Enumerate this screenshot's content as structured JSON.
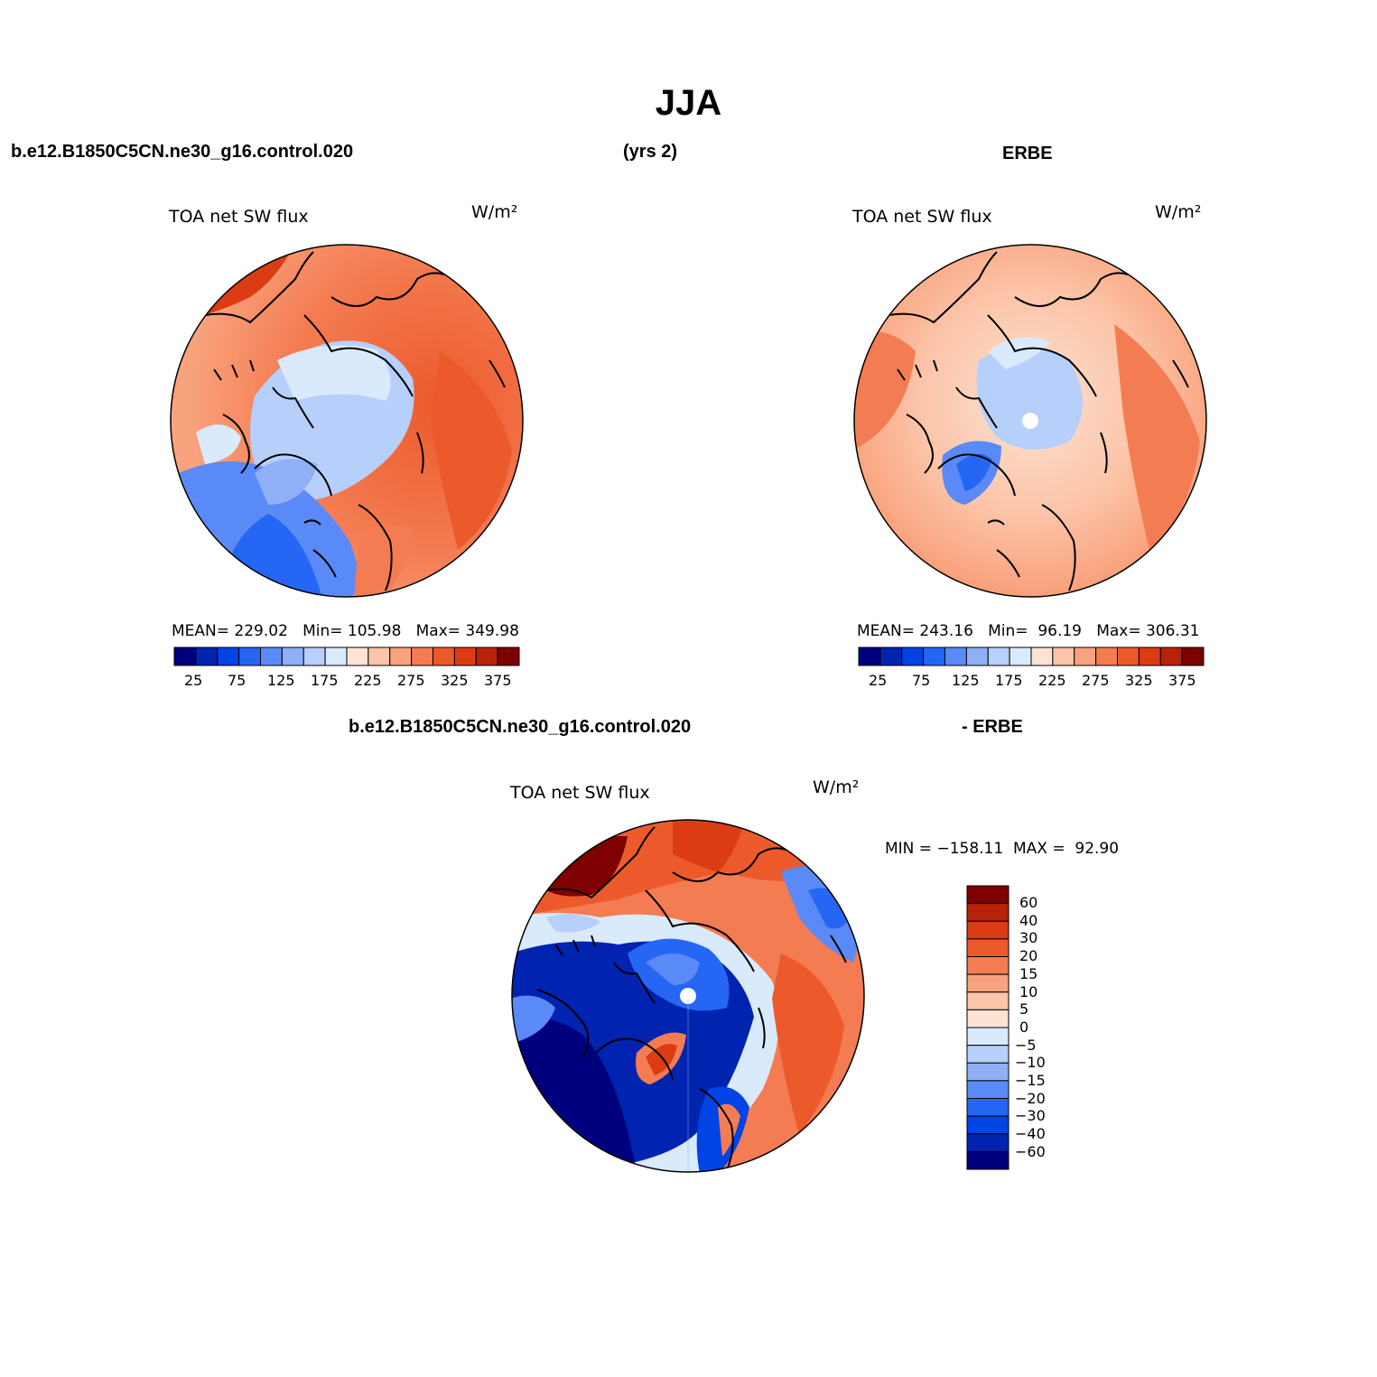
{
  "page": {
    "title": "JJA",
    "case_name": "b.e12.B1850C5CN.ne30_g16.control.020",
    "years": "(yrs 2)",
    "obs_name": "ERBE",
    "diff_case_name": "b.e12.B1850C5CN.ne30_g16.control.020",
    "diff_obs_name": "- ERBE"
  },
  "panels": {
    "model": {
      "variable": "TOA net SW flux",
      "units": "W/m²",
      "stats": "MEAN= 229.02   Min= 105.98   Max= 349.98"
    },
    "obs": {
      "variable": "TOA net SW flux",
      "units": "W/m²",
      "stats": "MEAN= 243.16   Min=  96.19   Max= 306.31"
    },
    "diff": {
      "variable": "TOA net SW flux",
      "units": "W/m²",
      "stats": "MIN = −158.11  MAX =  92.90"
    }
  },
  "colorbars": {
    "absolute": {
      "colors": [
        "#00007f",
        "#0023b0",
        "#0044e6",
        "#2566f5",
        "#5a8af7",
        "#8fb0f7",
        "#b6cffb",
        "#d9eafc",
        "#fde3d3",
        "#fcc4a8",
        "#f9a37e",
        "#f47c52",
        "#ec5a2c",
        "#dc3c13",
        "#b72308",
        "#7f0000"
      ],
      "labels": [
        "25",
        "75",
        "125",
        "175",
        "225",
        "275",
        "325",
        "375"
      ]
    },
    "difference": {
      "colors": [
        "#7f0000",
        "#b72308",
        "#dc3c13",
        "#ec5a2c",
        "#f47c52",
        "#f9a37e",
        "#fcc4a8",
        "#fde3d3",
        "#d9eafc",
        "#b6cffb",
        "#8fb0f7",
        "#5a8af7",
        "#2566f5",
        "#0044e6",
        "#0023b0",
        "#00007f"
      ],
      "labels": [
        "60",
        "40",
        "30",
        "20",
        "15",
        "10",
        "5",
        "0",
        "−5",
        "−10",
        "−15",
        "−20",
        "−30",
        "−40",
        "−60"
      ]
    }
  }
}
